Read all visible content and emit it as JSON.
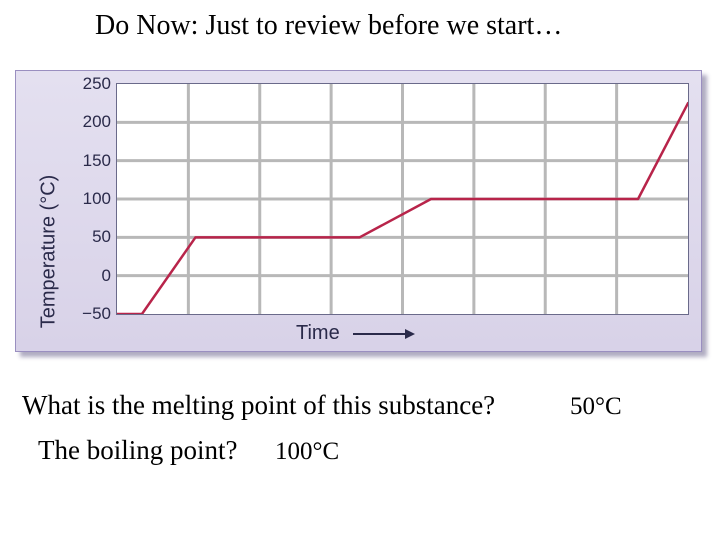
{
  "title": "Do Now: Just to review before we start…",
  "chart": {
    "type": "line",
    "ylabel": "Temperature (°C)",
    "xlabel": "Time",
    "ylim": [
      -50,
      250
    ],
    "ytick_step": 50,
    "yticks": [
      -50,
      0,
      50,
      100,
      150,
      200,
      250
    ],
    "ytick_labels": [
      "−50",
      "0",
      "50",
      "100",
      "150",
      "200",
      "250"
    ],
    "x_cols": 8,
    "line_color": "#b8244a",
    "line_width": 2.5,
    "grid_color": "#b8b8b8",
    "background_color": "#ffffff",
    "panel_bg": "#dcd6ec",
    "border_color": "#6a6a8a",
    "points_xy": [
      [
        0,
        -50
      ],
      [
        0.35,
        -50
      ],
      [
        1.1,
        50
      ],
      [
        3.4,
        50
      ],
      [
        4.4,
        100
      ],
      [
        7.3,
        100
      ],
      [
        8,
        225
      ]
    ]
  },
  "question1": "What is the melting point of this substance?",
  "answer1": "50°C",
  "question2": "The boiling point?",
  "answer2": "100°C"
}
